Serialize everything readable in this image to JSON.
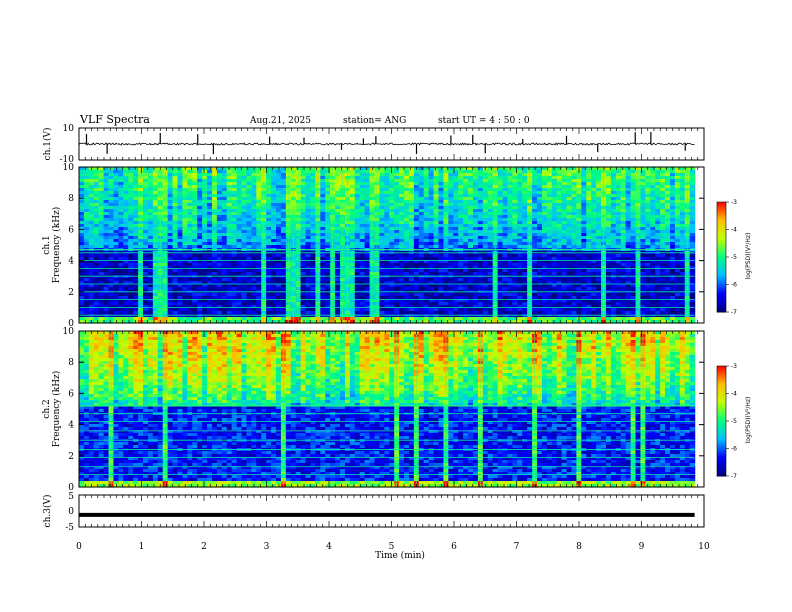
{
  "header": {
    "title": "VLF Spectra",
    "date": "Aug.21, 2025",
    "station": "station= ANG",
    "start": "start  UT =   4  : 50 : 0"
  },
  "colors": {
    "spectrogram_colormap": [
      "#00007f",
      "#0000ff",
      "#00bfff",
      "#00ff7f",
      "#bfff00",
      "#ffbf00",
      "#ff0000",
      "#ffffff"
    ],
    "trace": "#000000"
  },
  "chart_data": [
    {
      "type": "line",
      "id": "ch1",
      "ylabel": "ch.1(V)",
      "ylim": [
        -10,
        10
      ],
      "yticks": [
        "10",
        "-10"
      ],
      "baseline": 0,
      "noise_amplitude": 0.6,
      "spike_times_min": [
        0.12,
        0.45,
        1.3,
        1.9,
        2.15,
        3.05,
        3.6,
        4.2,
        4.55,
        4.75,
        5.4,
        5.95,
        6.3,
        6.5,
        7.1,
        7.8,
        8.3,
        8.9,
        9.15,
        9.7
      ]
    },
    {
      "type": "heatmap",
      "id": "ch1-spectrogram",
      "ylabel": "Frequency  (kHz)",
      "channel_label": "ch.1",
      "ylim": [
        0,
        10
      ],
      "xlim": [
        0,
        9.85
      ],
      "yticks": [
        "0",
        "2",
        "4",
        "6",
        "8",
        "10"
      ],
      "colorbar": {
        "label": "log(PSD)(V²/Hz)",
        "ticks": [
          "-3",
          "-4",
          "-5",
          "-6",
          "-7"
        ],
        "range": [
          -7,
          -3
        ]
      },
      "band_edge_khz": 4.7,
      "emission_level": -4.6,
      "floor_level": -6.6,
      "harmonic_lines_khz": [
        0.5,
        1.0,
        1.5,
        2.0,
        2.5,
        3.0,
        3.5,
        4.0,
        4.5
      ]
    },
    {
      "type": "heatmap",
      "id": "ch2-spectrogram",
      "ylabel": "Frequency  (kHz)",
      "channel_label": "ch.2",
      "ylim": [
        0,
        10
      ],
      "xlim": [
        0,
        9.85
      ],
      "yticks": [
        "0",
        "2",
        "4",
        "6",
        "8",
        "10"
      ],
      "colorbar": {
        "label": "log(PSD)(V²/Hz)",
        "ticks": [
          "-3",
          "-4",
          "-5",
          "-6",
          "-7"
        ],
        "range": [
          -7,
          -3
        ]
      },
      "band_edge_khz": 5.2,
      "emission_level": -3.6,
      "floor_level": -6.3,
      "harmonic_lines_khz": [
        0.8,
        1.3,
        1.9,
        2.4,
        3.0,
        3.6,
        4.2,
        4.7
      ]
    },
    {
      "type": "line",
      "id": "ch3",
      "ylabel": "ch.3(V)",
      "ylim": [
        -5,
        5
      ],
      "yticks": [
        "5",
        "0",
        "-5"
      ],
      "baseline": -1.2
    }
  ],
  "xaxis": {
    "label": "Time  (min)",
    "ticks": [
      "0",
      "1",
      "2",
      "3",
      "4",
      "5",
      "6",
      "7",
      "8",
      "9",
      "10"
    ],
    "xlim": [
      0,
      10
    ]
  }
}
